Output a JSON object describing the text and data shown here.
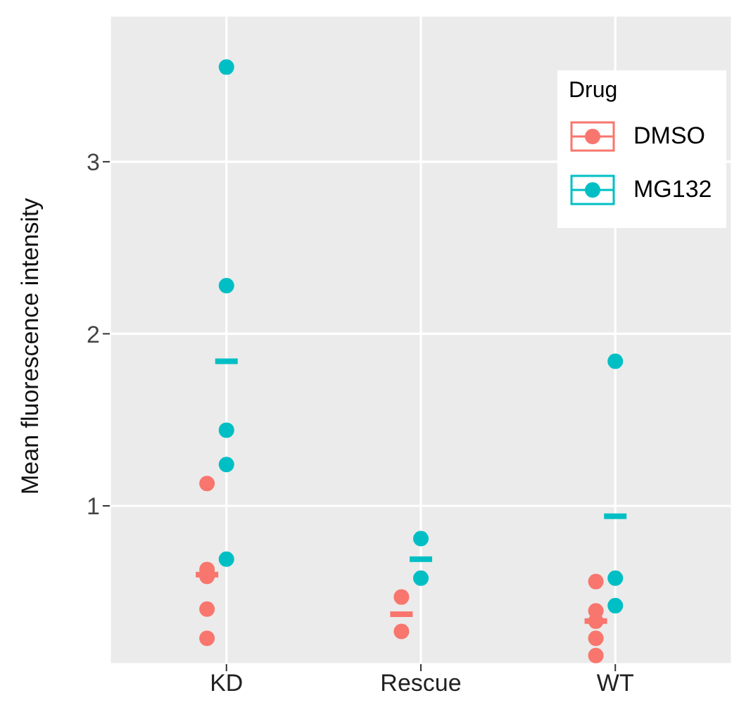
{
  "chart_data": {
    "type": "scatter",
    "ylabel": "Mean fluorescence intensity",
    "legend_title": "Drug",
    "categories": [
      "KD",
      "Rescue",
      "WT"
    ],
    "series": [
      {
        "name": "DMSO",
        "color": "#f8766d",
        "x": [
          "KD",
          "KD",
          "KD",
          "KD",
          "KD",
          "Rescue",
          "Rescue",
          "WT",
          "WT",
          "WT",
          "WT",
          "WT"
        ],
        "values": [
          1.13,
          0.63,
          0.59,
          0.4,
          0.23,
          0.47,
          0.27,
          0.56,
          0.39,
          0.33,
          0.23,
          0.13
        ]
      },
      {
        "name": "MG132",
        "color": "#00bfc4",
        "x": [
          "KD",
          "KD",
          "KD",
          "KD",
          "KD",
          "Rescue",
          "Rescue",
          "WT",
          "WT",
          "WT"
        ],
        "values": [
          3.55,
          2.28,
          1.44,
          1.24,
          0.69,
          0.81,
          0.58,
          1.84,
          0.58,
          0.42
        ]
      },
      {
        "type": "box",
        "color": "#f8766d",
        "boxes": [
          {
            "low": 0.6,
            "q1": 0.6,
            "median": 0.6,
            "q3": 0.6,
            "high": 0.6
          },
          {
            "low": 0.37,
            "q1": 0.37,
            "median": 0.37,
            "q3": 0.37,
            "high": 0.37
          },
          {
            "low": 0.33,
            "q1": 0.33,
            "median": 0.33,
            "q3": 0.33,
            "high": 0.33
          }
        ]
      },
      {
        "type": "box",
        "color": "#00bfc4",
        "boxes": [
          {
            "low": 1.84,
            "q1": 1.84,
            "median": 1.84,
            "q3": 1.84,
            "high": 1.84
          },
          {
            "low": 0.69,
            "q1": 0.69,
            "median": 0.69,
            "q3": 0.69,
            "high": 0.69
          },
          {
            "low": 0.94,
            "q1": 0.94,
            "median": 0.94,
            "q3": 0.94,
            "high": 0.94
          }
        ]
      }
    ],
    "ylim": [
      0.08,
      3.85
    ],
    "yticks": [
      1,
      2,
      3
    ],
    "grid": true,
    "legend": "top right",
    "marker": "circle"
  }
}
